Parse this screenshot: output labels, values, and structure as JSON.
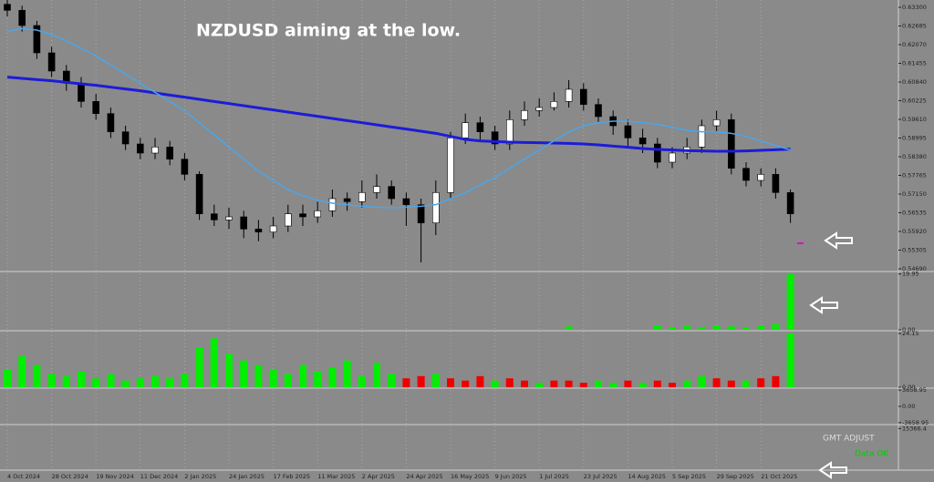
{
  "chart_data": [
    {
      "type": "candlestick",
      "title": "NZDUSD aiming at the low.",
      "categories": [
        "4 Oct 2024",
        null,
        null,
        "28 Oct 2024",
        null,
        null,
        "19 Nov 2024",
        null,
        null,
        "11 Dec 2024",
        null,
        null,
        "2 Jan 2025",
        null,
        null,
        "24 Jan 2025",
        null,
        null,
        "17 Feb 2025",
        null,
        null,
        "11 Mar 2025",
        null,
        null,
        "2 Apr 2025",
        null,
        null,
        "24 Apr 2025",
        null,
        null,
        "16 May 2025",
        null,
        null,
        "9 Jun 2025",
        null,
        null,
        "1 Jul 2025",
        null,
        null,
        "23 Jul 2025",
        null,
        null,
        "14 Aug 2025",
        null,
        null,
        "5 Sep 2025",
        null,
        null,
        "29 Sep 2025",
        null,
        null,
        "21 Oct 2025",
        null,
        null
      ],
      "open": [
        0.634,
        0.632,
        0.627,
        0.618,
        0.612,
        0.608,
        0.602,
        0.598,
        0.592,
        0.588,
        0.585,
        0.587,
        0.583,
        0.578,
        0.565,
        0.563,
        0.564,
        0.56,
        0.559,
        0.561,
        0.565,
        0.564,
        0.566,
        0.57,
        0.569,
        0.572,
        0.574,
        0.57,
        0.568,
        0.562,
        0.572,
        0.59,
        0.595,
        0.592,
        0.588,
        0.596,
        0.599,
        0.6,
        0.602,
        0.606,
        0.601,
        0.597,
        0.594,
        0.59,
        0.588,
        0.582,
        0.585,
        0.587,
        0.594,
        0.596,
        0.58,
        0.576,
        0.578,
        0.572
      ],
      "high": [
        0.6365,
        0.6335,
        0.6285,
        0.62,
        0.614,
        0.61,
        0.6045,
        0.6,
        0.594,
        0.59,
        0.59,
        0.589,
        0.585,
        0.579,
        0.568,
        0.567,
        0.566,
        0.563,
        0.564,
        0.568,
        0.568,
        0.569,
        0.573,
        0.572,
        0.576,
        0.578,
        0.576,
        0.572,
        0.57,
        0.576,
        0.592,
        0.598,
        0.597,
        0.594,
        0.599,
        0.602,
        0.603,
        0.605,
        0.609,
        0.608,
        0.603,
        0.599,
        0.596,
        0.593,
        0.59,
        0.587,
        0.59,
        0.596,
        0.599,
        0.598,
        0.582,
        0.58,
        0.58,
        0.573
      ],
      "low": [
        0.63,
        0.625,
        0.616,
        0.61,
        0.6055,
        0.6,
        0.596,
        0.59,
        0.586,
        0.583,
        0.583,
        0.581,
        0.576,
        0.563,
        0.561,
        0.56,
        0.557,
        0.556,
        0.557,
        0.559,
        0.561,
        0.562,
        0.564,
        0.566,
        0.567,
        0.57,
        0.568,
        0.561,
        0.549,
        0.558,
        0.57,
        0.588,
        0.589,
        0.586,
        0.586,
        0.594,
        0.597,
        0.599,
        0.6,
        0.599,
        0.595,
        0.591,
        0.587,
        0.585,
        0.58,
        0.58,
        0.583,
        0.585,
        0.592,
        0.578,
        0.574,
        0.574,
        0.57,
        0.562
      ],
      "close": [
        0.632,
        0.627,
        0.618,
        0.612,
        0.608,
        0.602,
        0.598,
        0.592,
        0.588,
        0.585,
        0.587,
        0.583,
        0.578,
        0.565,
        0.563,
        0.564,
        0.56,
        0.559,
        0.561,
        0.565,
        0.564,
        0.566,
        0.57,
        0.569,
        0.572,
        0.574,
        0.57,
        0.568,
        0.562,
        0.572,
        0.59,
        0.595,
        0.592,
        0.588,
        0.596,
        0.599,
        0.6,
        0.602,
        0.606,
        0.601,
        0.597,
        0.594,
        0.59,
        0.588,
        0.582,
        0.585,
        0.587,
        0.594,
        0.596,
        0.58,
        0.576,
        0.578,
        0.572,
        0.565
      ],
      "up_color": "#ffffff",
      "down_color": "#000000",
      "lines": [
        {
          "color": "#1c1cd8",
          "width": 3,
          "values": [
            0.61,
            0.6096,
            0.6092,
            0.6088,
            0.6083,
            0.6078,
            0.6073,
            0.6067,
            0.6061,
            0.6055,
            0.6048,
            0.6041,
            0.6034,
            0.6027,
            0.602,
            0.6013,
            0.6006,
            0.5999,
            0.5992,
            0.5985,
            0.5978,
            0.5971,
            0.5964,
            0.5957,
            0.595,
            0.5943,
            0.5936,
            0.5929,
            0.5922,
            0.5915,
            0.5905,
            0.5895,
            0.589,
            0.5888,
            0.5886,
            0.5885,
            0.5884,
            0.5883,
            0.5882,
            0.588,
            0.5877,
            0.5873,
            0.5869,
            0.5865,
            0.5862,
            0.586,
            0.5858,
            0.5857,
            0.5856,
            0.5856,
            0.5857,
            0.5859,
            0.5861,
            0.5863
          ]
        },
        {
          "color": "#4aa6ea",
          "width": 1.5,
          "values": [
            0.625,
            0.626,
            0.6255,
            0.624,
            0.622,
            0.6195,
            0.617,
            0.614,
            0.611,
            0.608,
            0.605,
            0.602,
            0.599,
            0.595,
            0.591,
            0.587,
            0.583,
            0.579,
            0.576,
            0.573,
            0.571,
            0.5695,
            0.5685,
            0.568,
            0.5675,
            0.5672,
            0.567,
            0.5672,
            0.5675,
            0.568,
            0.57,
            0.572,
            0.5745,
            0.577,
            0.58,
            0.583,
            0.586,
            0.589,
            0.592,
            0.594,
            0.595,
            0.5955,
            0.5955,
            0.595,
            0.5945,
            0.5935,
            0.5925,
            0.592,
            0.592,
            0.5915,
            0.5905,
            0.589,
            0.5875,
            0.586
          ]
        }
      ],
      "ylim": [
        0.5463,
        0.6354
      ],
      "yticks": [
        {
          "value": 0.633,
          "label": "0.63300"
        },
        {
          "value": 0.62685,
          "label": "0.62685"
        },
        {
          "value": 0.6207,
          "label": "0.62070"
        },
        {
          "value": 0.61455,
          "label": "0.61455"
        },
        {
          "value": 0.6084,
          "label": "0.60840"
        },
        {
          "value": 0.60225,
          "label": "0.60225"
        },
        {
          "value": 0.5961,
          "label": "0.59610"
        },
        {
          "value": 0.58995,
          "label": "0.58995"
        },
        {
          "value": 0.5838,
          "label": "0.58380"
        },
        {
          "value": 0.57765,
          "label": "0.57765"
        },
        {
          "value": 0.5715,
          "label": "0.57150"
        },
        {
          "value": 0.56535,
          "label": "0.56535"
        },
        {
          "value": 0.5592,
          "label": "0.55920"
        },
        {
          "value": 0.55305,
          "label": "0.55305"
        },
        {
          "value": 0.5469,
          "label": "0.54690"
        }
      ]
    },
    {
      "type": "bar",
      "color": "#00ee00",
      "values": [
        0,
        0,
        0,
        0,
        0,
        0,
        0,
        0,
        0,
        0,
        0,
        0,
        0,
        0,
        0,
        0,
        0,
        0,
        0,
        0,
        0,
        0,
        0,
        0,
        0,
        0,
        0,
        0,
        0,
        0,
        0,
        0,
        0,
        0,
        0,
        0,
        0,
        0,
        1.2,
        0,
        0,
        0,
        0,
        0,
        1.5,
        1.0,
        1.3,
        0.8,
        1.6,
        1.2,
        1.0,
        1.4,
        2.0,
        19.95
      ],
      "ylim": [
        0,
        20.5
      ],
      "yticks": [
        {
          "value": 0,
          "label": "0.00"
        },
        19.95
      ]
    },
    {
      "type": "bar",
      "values": [
        8,
        14,
        10,
        6,
        5,
        7,
        4,
        6,
        3,
        4,
        5,
        4,
        6,
        18,
        22,
        15,
        12,
        10,
        8,
        6,
        10,
        7,
        9,
        12,
        5,
        11,
        6,
        4,
        5,
        6,
        4,
        3,
        5,
        3,
        4,
        3,
        2,
        3,
        3,
        2,
        3,
        2,
        3,
        2,
        3,
        2,
        3,
        5,
        4,
        3,
        3,
        4,
        5,
        24.15
      ],
      "colors": [
        "#00ee00",
        "#00ee00",
        "#00ee00",
        "#00ee00",
        "#00ee00",
        "#00ee00",
        "#00ee00",
        "#00ee00",
        "#00ee00",
        "#00ee00",
        "#00ee00",
        "#00ee00",
        "#00ee00",
        "#00ee00",
        "#00ee00",
        "#00ee00",
        "#00ee00",
        "#00ee00",
        "#00ee00",
        "#00ee00",
        "#00ee00",
        "#00ee00",
        "#00ee00",
        "#00ee00",
        "#00ee00",
        "#00ee00",
        "#00ee00",
        "#ee0000",
        "#ee0000",
        "#00ee00",
        "#ee0000",
        "#ee0000",
        "#ee0000",
        "#00ee00",
        "#ee0000",
        "#ee0000",
        "#00ee00",
        "#ee0000",
        "#ee0000",
        "#ee0000",
        "#00ee00",
        "#00ee00",
        "#ee0000",
        "#00ee00",
        "#ee0000",
        "#ee0000",
        "#00ee00",
        "#00ee00",
        "#ee0000",
        "#ee0000",
        "#00ee00",
        "#ee0000",
        "#ee0000",
        "#00ee00"
      ],
      "ylim": [
        0,
        25
      ],
      "yticks": [
        {
          "value": 0,
          "label": "0.00"
        },
        24.15
      ]
    },
    {
      "type": "line",
      "ylim": [
        -3900,
        3900
      ],
      "yticks": [
        3658.95,
        {
          "value": 0,
          "label": "0.00"
        },
        -3658.95
      ]
    },
    {
      "type": "line",
      "ylim": [
        0,
        16500
      ],
      "yticks": [
        15366.4
      ],
      "annotations": [
        "GMT ADJUST",
        "Data OK"
      ]
    }
  ]
}
